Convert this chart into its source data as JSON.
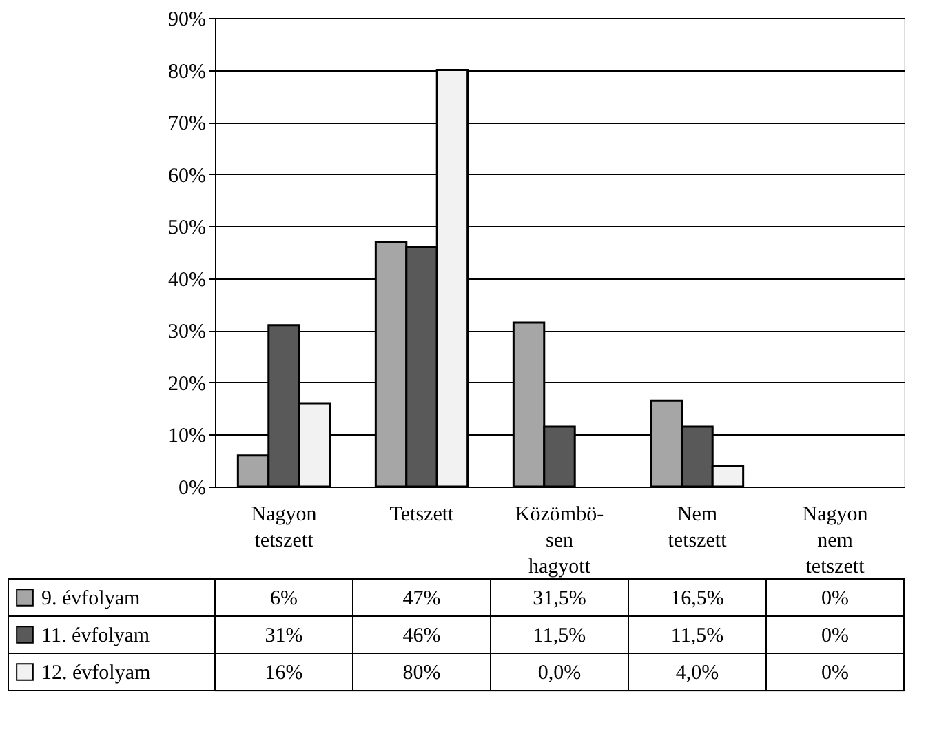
{
  "chart_data": {
    "type": "bar",
    "categories": [
      "Nagyon tetszett",
      "Tetszett",
      "Közömbö-sen hagyott",
      "Nem tetszett",
      "Nagyon nem tetszett"
    ],
    "series": [
      {
        "name": "9. évfolyam",
        "color": "#a6a6a6",
        "values": [
          6,
          47,
          31.5,
          16.5,
          0
        ],
        "value_labels": [
          "6%",
          "47%",
          "31,5%",
          "16,5%",
          "0%"
        ]
      },
      {
        "name": "11. évfolyam",
        "color": "#595959",
        "values": [
          31,
          46,
          11.5,
          11.5,
          0
        ],
        "value_labels": [
          "31%",
          "46%",
          "11,5%",
          "11,5%",
          "0%"
        ]
      },
      {
        "name": "12. évfolyam",
        "color": "#f2f2f2",
        "values": [
          16,
          80,
          0.0,
          4.0,
          0
        ],
        "value_labels": [
          "16%",
          "80%",
          "0,0%",
          "4,0%",
          "0%"
        ]
      }
    ],
    "ylim": [
      0,
      90
    ],
    "yticks": [
      {
        "value": 0,
        "label": "0%"
      },
      {
        "value": 10,
        "label": "10%"
      },
      {
        "value": 20,
        "label": "20%"
      },
      {
        "value": 30,
        "label": "30%"
      },
      {
        "value": 40,
        "label": "40%"
      },
      {
        "value": 50,
        "label": "50%"
      },
      {
        "value": 60,
        "label": "60%"
      },
      {
        "value": 70,
        "label": "70%"
      },
      {
        "value": 80,
        "label": "80%"
      },
      {
        "value": 90,
        "label": "90%"
      }
    ],
    "grid": "y",
    "legend": "bottom left"
  }
}
